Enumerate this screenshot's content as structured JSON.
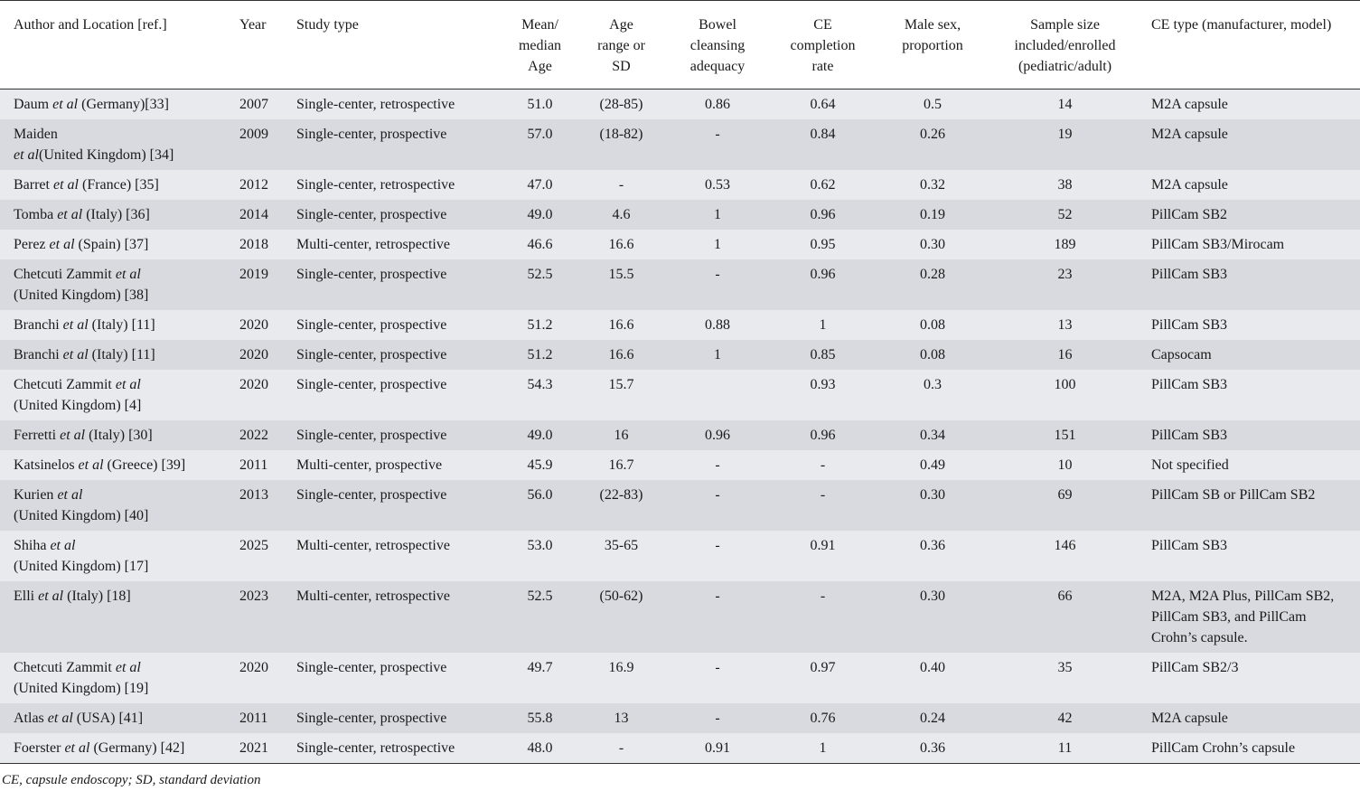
{
  "headers": {
    "author": "Author and Location [ref.]",
    "year": "Year",
    "study_type": "Study type",
    "age": "Mean/ median Age",
    "age_range": "Age range or SD",
    "bowel": "Bowel cleansing adequacy",
    "completion": "CE completion rate",
    "male": "Male sex, proportion",
    "sample": "Sample size included/enrolled (pediatric/adult)",
    "ce_type": "CE type (manufacturer, model)"
  },
  "rows": [
    {
      "author_pre": "Daum ",
      "author_etal": "et al",
      "author_post": " (Germany)[33]",
      "author_line2": "",
      "year": "2007",
      "study_type": "Single-center, retrospective",
      "age": "51.0",
      "age_range": "(28-85)",
      "bowel": "0.86",
      "completion": "0.64",
      "male": "0.5",
      "sample": "14",
      "ce_type": "M2A capsule"
    },
    {
      "author_pre": "Maiden",
      "author_etal": "",
      "author_post": "",
      "author_line2_etal": "et al",
      "author_line2": "(United Kingdom) [34]",
      "year": "2009",
      "study_type": "Single-center, prospective",
      "age": "57.0",
      "age_range": "(18-82)",
      "bowel": "-",
      "completion": "0.84",
      "male": "0.26",
      "sample": "19",
      "ce_type": "M2A capsule"
    },
    {
      "author_pre": "Barret ",
      "author_etal": "et al",
      "author_post": " (France) [35]",
      "author_line2": "",
      "year": "2012",
      "study_type": "Single-center, retrospective",
      "age": "47.0",
      "age_range": "-",
      "bowel": "0.53",
      "completion": "0.62",
      "male": "0.32",
      "sample": "38",
      "ce_type": "M2A capsule"
    },
    {
      "author_pre": "Tomba ",
      "author_etal": "et al",
      "author_post": " (Italy) [36]",
      "author_line2": "",
      "year": "2014",
      "study_type": "Single-center, prospective",
      "age": "49.0",
      "age_range": "4.6",
      "bowel": "1",
      "completion": "0.96",
      "male": "0.19",
      "sample": "52",
      "ce_type": "PillCam SB2"
    },
    {
      "author_pre": "Perez ",
      "author_etal": "et al",
      "author_post": " (Spain) [37]",
      "author_line2": "",
      "year": "2018",
      "study_type": "Multi-center, retrospective",
      "age": "46.6",
      "age_range": "16.6",
      "bowel": "1",
      "completion": "0.95",
      "male": "0.30",
      "sample": "189",
      "ce_type": "PillCam SB3/Mirocam"
    },
    {
      "author_pre": "Chetcuti Zammit ",
      "author_etal": "et al",
      "author_post": "",
      "author_line2": "(United Kingdom) [38]",
      "year": "2019",
      "study_type": "Single-center, prospective",
      "age": "52.5",
      "age_range": "15.5",
      "bowel": "-",
      "completion": "0.96",
      "male": "0.28",
      "sample": "23",
      "ce_type": "PillCam SB3"
    },
    {
      "author_pre": "Branchi ",
      "author_etal": "et al",
      "author_post": " (Italy) [11]",
      "author_line2": "",
      "year": "2020",
      "study_type": "Single-center, prospective",
      "age": "51.2",
      "age_range": "16.6",
      "bowel": "0.88",
      "completion": "1",
      "male": "0.08",
      "sample": "13",
      "ce_type": "PillCam SB3"
    },
    {
      "author_pre": "Branchi ",
      "author_etal": "et al",
      "author_post": " (Italy) [11]",
      "author_line2": "",
      "year": "2020",
      "study_type": "Single-center, prospective",
      "age": "51.2",
      "age_range": "16.6",
      "bowel": "1",
      "completion": "0.85",
      "male": "0.08",
      "sample": "16",
      "ce_type": "Capsocam"
    },
    {
      "author_pre": "Chetcuti Zammit ",
      "author_etal": "et al",
      "author_post": "",
      "author_line2": "(United Kingdom) [4]",
      "year": "2020",
      "study_type": "Single-center, prospective",
      "age": "54.3",
      "age_range": "15.7",
      "bowel": "",
      "completion": "0.93",
      "male": "0.3",
      "sample": "100",
      "ce_type": "PillCam SB3"
    },
    {
      "author_pre": "Ferretti ",
      "author_etal": "et al",
      "author_post": " (Italy) [30]",
      "author_line2": "",
      "year": "2022",
      "study_type": "Single-center, prospective",
      "age": "49.0",
      "age_range": "16",
      "bowel": "0.96",
      "completion": "0.96",
      "male": "0.34",
      "sample": "151",
      "ce_type": "PillCam SB3"
    },
    {
      "author_pre": "Katsinelos ",
      "author_etal": "et al",
      "author_post": " (Greece) [39]",
      "author_line2": "",
      "year": "2011",
      "study_type": "Multi-center, prospective",
      "age": "45.9",
      "age_range": "16.7",
      "bowel": "-",
      "completion": "-",
      "male": "0.49",
      "sample": "10",
      "ce_type": "Not specified"
    },
    {
      "author_pre": "Kurien ",
      "author_etal": "et al",
      "author_post": "",
      "author_line2": "(United Kingdom) [40]",
      "year": "2013",
      "study_type": "Single-center, prospective",
      "age": "56.0",
      "age_range": "(22-83)",
      "bowel": "-",
      "completion": "-",
      "male": "0.30",
      "sample": "69",
      "ce_type": "PillCam SB or PillCam SB2"
    },
    {
      "author_pre": "Shiha ",
      "author_etal": "et al",
      "author_post": "",
      "author_line2": "(United Kingdom) [17]",
      "year": "2025",
      "study_type": "Multi-center, retrospective",
      "age": "53.0",
      "age_range": "35-65",
      "bowel": "-",
      "completion": "0.91",
      "male": "0.36",
      "sample": "146",
      "ce_type": "PillCam SB3"
    },
    {
      "author_pre": "Elli ",
      "author_etal": "et al",
      "author_post": " (Italy) [18]",
      "author_line2": "",
      "year": "2023",
      "study_type": "Multi-center, retrospective",
      "age": "52.5",
      "age_range": "(50-62)",
      "bowel": "-",
      "completion": "-",
      "male": "0.30",
      "sample": "66",
      "ce_type": "M2A, M2A Plus, PillCam SB2, PillCam SB3, and PillCam Crohn’s capsule."
    },
    {
      "author_pre": "Chetcuti Zammit ",
      "author_etal": "et al",
      "author_post": "",
      "author_line2": "(United Kingdom) [19]",
      "year": "2020",
      "study_type": "Single-center, prospective",
      "age": "49.7",
      "age_range": "16.9",
      "bowel": "-",
      "completion": "0.97",
      "male": "0.40",
      "sample": "35",
      "ce_type": "PillCam SB2/3"
    },
    {
      "author_pre": "Atlas ",
      "author_etal": "et al",
      "author_post": " (USA)  [41]",
      "author_line2": "",
      "year": "2011",
      "study_type": "Single-center, prospective",
      "age": "55.8",
      "age_range": "13",
      "bowel": "-",
      "completion": "0.76",
      "male": "0.24",
      "sample": "42",
      "ce_type": "M2A capsule"
    },
    {
      "author_pre": "Foerster ",
      "author_etal": "et al",
      "author_post": " (Germany) [42]",
      "author_line2": "",
      "year": "2021",
      "study_type": "Single-center, retrospective",
      "age": "48.0",
      "age_range": "-",
      "bowel": "0.91",
      "completion": "1",
      "male": "0.36",
      "sample": "11",
      "ce_type": "PillCam Crohn’s capsule"
    }
  ],
  "footnote": "CE, capsule endoscopy; SD, standard deviation"
}
